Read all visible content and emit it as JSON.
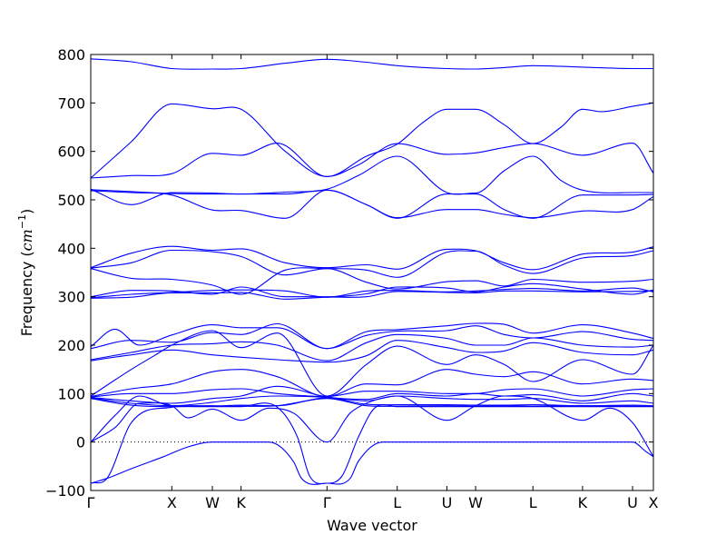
{
  "chart_data": {
    "type": "line",
    "xlabel": "Wave vector",
    "ylabel": "Frequency",
    "ylabel_unit_base": "cm",
    "ylabel_unit_exp": "−1",
    "ylim": [
      -100,
      800
    ],
    "yticks": [
      -100,
      0,
      100,
      200,
      300,
      400,
      500,
      600,
      700,
      800
    ],
    "zero_line": true,
    "x_ticks": [
      {
        "label": "Γ",
        "pos": 0.0
      },
      {
        "label": "X",
        "pos": 1.0
      },
      {
        "label": "W",
        "pos": 1.5
      },
      {
        "label": "K",
        "pos": 1.854
      },
      {
        "label": "Γ",
        "pos": 2.914
      },
      {
        "label": "L",
        "pos": 3.78
      },
      {
        "label": "U",
        "pos": 4.393
      },
      {
        "label": "W",
        "pos": 4.747
      },
      {
        "label": "L",
        "pos": 5.454
      },
      {
        "label": "K",
        "pos": 6.066
      },
      {
        "label": "U",
        "pos": 6.683
      },
      {
        "label": "X",
        "pos": 6.94
      }
    ],
    "xlim": [
      0,
      6.94
    ],
    "series": [
      {
        "x": [
          0,
          0.5,
          1.0,
          1.5,
          1.854,
          2.4,
          2.914,
          3.4,
          3.78,
          4.393,
          4.747,
          5.1,
          5.454,
          6.066,
          6.683,
          6.94
        ],
        "values": [
          791,
          785,
          771,
          770,
          771,
          782,
          790,
          784,
          777,
          771,
          770,
          773,
          777,
          774,
          771,
          771
        ]
      },
      {
        "x": [
          0,
          0.5,
          1.0,
          1.5,
          1.854,
          2.4,
          2.914,
          3.4,
          3.78,
          4.1,
          4.393,
          4.747,
          5.1,
          5.454,
          5.8,
          6.066,
          6.3,
          6.683,
          6.94
        ],
        "values": [
          545,
          620,
          698,
          688,
          687,
          600,
          548,
          590,
          615,
          660,
          687,
          687,
          655,
          616,
          650,
          687,
          682,
          693,
          700
        ]
      },
      {
        "x": [
          0,
          0.5,
          1.0,
          1.5,
          1.854,
          2.3,
          2.914,
          3.3,
          3.78,
          4.393,
          4.747,
          5.1,
          5.454,
          6.066,
          6.683,
          6.94
        ],
        "values": [
          545,
          550,
          554,
          596,
          592,
          617,
          548,
          572,
          616,
          594,
          597,
          608,
          616,
          592,
          617,
          555
        ]
      },
      {
        "x": [
          0,
          0.5,
          1.0,
          1.5,
          1.854,
          2.4,
          2.914,
          3.3,
          3.78,
          4.393,
          4.747,
          5.1,
          5.454,
          5.8,
          6.066,
          6.683,
          6.94
        ],
        "values": [
          522,
          490,
          515,
          514,
          512,
          516,
          522,
          550,
          590,
          515,
          514,
          560,
          590,
          540,
          520,
          515,
          515
        ]
      },
      {
        "x": [
          0,
          0.5,
          1.0,
          1.5,
          1.854,
          2.4,
          2.914,
          3.4,
          3.78,
          4.393,
          4.747,
          5.1,
          5.454,
          6.066,
          6.683,
          6.94
        ],
        "values": [
          521,
          517,
          513,
          512,
          512,
          512,
          520,
          490,
          463,
          480,
          480,
          470,
          463,
          477,
          480,
          507
        ]
      },
      {
        "x": [
          0,
          0.5,
          1.0,
          1.5,
          1.854,
          2.4,
          2.914,
          3.4,
          3.78,
          4.393,
          4.747,
          5.1,
          5.454,
          6.066,
          6.683,
          6.94
        ],
        "values": [
          519,
          515,
          510,
          479,
          478,
          462,
          520,
          490,
          462,
          512,
          512,
          480,
          462,
          510,
          510,
          511
        ]
      },
      {
        "x": [
          0,
          0.5,
          1.0,
          1.5,
          1.854,
          2.4,
          2.914,
          3.4,
          3.78,
          4.393,
          4.747,
          5.1,
          5.454,
          6.066,
          6.683,
          6.94
        ],
        "values": [
          360,
          390,
          404,
          396,
          399,
          370,
          360,
          366,
          357,
          398,
          395,
          370,
          356,
          388,
          392,
          403
        ]
      },
      {
        "x": [
          0,
          0.5,
          1.0,
          1.5,
          1.854,
          2.4,
          2.914,
          3.4,
          3.78,
          4.393,
          4.747,
          5.1,
          5.454,
          6.066,
          6.683,
          6.94
        ],
        "values": [
          359,
          370,
          396,
          393,
          383,
          345,
          358,
          355,
          340,
          392,
          394,
          365,
          348,
          380,
          385,
          395
        ]
      },
      {
        "x": [
          0,
          0.5,
          1.0,
          1.5,
          1.854,
          2.4,
          2.914,
          3.4,
          3.78,
          4.393,
          4.747,
          5.1,
          5.454,
          6.066,
          6.683,
          6.94
        ],
        "values": [
          358,
          338,
          336,
          324,
          305,
          355,
          358,
          330,
          316,
          331,
          333,
          322,
          336,
          330,
          332,
          336
        ]
      },
      {
        "x": [
          0,
          0.5,
          1.0,
          1.5,
          1.854,
          2.4,
          2.914,
          3.4,
          3.78,
          4.393,
          4.747,
          5.1,
          5.454,
          6.066,
          6.683,
          6.94
        ],
        "values": [
          300,
          313,
          312,
          305,
          320,
          300,
          300,
          306,
          320,
          318,
          310,
          320,
          327,
          316,
          305,
          314
        ]
      },
      {
        "x": [
          0,
          0.5,
          1.0,
          1.5,
          1.854,
          2.4,
          2.914,
          3.4,
          3.78,
          4.393,
          4.747,
          5.1,
          5.454,
          6.066,
          6.683,
          6.94
        ],
        "values": [
          298,
          305,
          309,
          313,
          314,
          312,
          299,
          312,
          313,
          310,
          312,
          315,
          317,
          312,
          318,
          310
        ]
      },
      {
        "x": [
          0,
          0.5,
          1.0,
          1.5,
          1.854,
          2.4,
          2.914,
          3.4,
          3.78,
          4.393,
          4.747,
          5.1,
          5.454,
          6.066,
          6.683,
          6.94
        ],
        "values": [
          297,
          299,
          308,
          308,
          309,
          295,
          299,
          300,
          311,
          309,
          308,
          312,
          312,
          310,
          311,
          312
        ]
      },
      {
        "x": [
          0,
          0.3,
          0.6,
          1.0,
          1.5,
          1.854,
          2.3,
          2.914,
          3.4,
          3.78,
          4.393,
          4.747,
          5.1,
          5.454,
          6.066,
          6.683,
          6.94
        ],
        "values": [
          197,
          233,
          200,
          221,
          242,
          236,
          236,
          193,
          228,
          232,
          240,
          245,
          243,
          225,
          242,
          225,
          214
        ]
      },
      {
        "x": [
          0,
          0.5,
          1.0,
          1.5,
          1.854,
          2.3,
          2.914,
          3.4,
          3.78,
          4.393,
          4.747,
          5.1,
          5.454,
          6.066,
          6.683,
          6.94
        ],
        "values": [
          193,
          210,
          206,
          226,
          222,
          244,
          193,
          220,
          229,
          230,
          240,
          222,
          215,
          228,
          212,
          210
        ]
      },
      {
        "x": [
          0,
          0.5,
          1.0,
          1.5,
          1.854,
          2.3,
          2.914,
          3.4,
          3.78,
          4.393,
          4.747,
          5.1,
          5.454,
          6.066,
          6.683,
          6.94
        ],
        "values": [
          170,
          185,
          200,
          203,
          207,
          200,
          168,
          205,
          222,
          214,
          200,
          200,
          215,
          200,
          196,
          200
        ]
      },
      {
        "x": [
          0,
          0.5,
          1.0,
          1.5,
          1.854,
          2.3,
          2.914,
          3.4,
          3.78,
          4.393,
          4.747,
          5.1,
          5.454,
          6.066,
          6.683,
          6.94
        ],
        "values": [
          168,
          180,
          190,
          180,
          175,
          170,
          165,
          178,
          210,
          195,
          185,
          188,
          205,
          185,
          180,
          190
        ]
      },
      {
        "x": [
          0,
          0.5,
          0.8,
          1.0,
          1.5,
          1.854,
          2.3,
          2.914,
          3.4,
          3.78,
          4.393,
          4.747,
          5.1,
          5.454,
          6.066,
          6.683,
          6.94
        ],
        "values": [
          95,
          150,
          180,
          200,
          230,
          195,
          225,
          95,
          160,
          198,
          160,
          180,
          160,
          125,
          170,
          140,
          200
        ]
      },
      {
        "x": [
          0,
          0.5,
          1.0,
          1.5,
          1.854,
          2.3,
          2.914,
          3.4,
          3.78,
          4.393,
          4.747,
          5.1,
          5.454,
          6.066,
          6.683,
          6.94
        ],
        "values": [
          94,
          110,
          120,
          145,
          150,
          135,
          94,
          120,
          118,
          150,
          140,
          135,
          145,
          120,
          130,
          127
        ]
      },
      {
        "x": [
          0,
          0.5,
          1.0,
          1.5,
          1.854,
          2.3,
          2.914,
          3.4,
          3.78,
          4.393,
          4.747,
          5.1,
          5.454,
          6.066,
          6.683,
          6.94
        ],
        "values": [
          93,
          100,
          100,
          108,
          110,
          100,
          94,
          105,
          105,
          100,
          100,
          108,
          110,
          95,
          108,
          110
        ]
      },
      {
        "x": [
          0,
          0.5,
          1.0,
          1.5,
          1.854,
          2.3,
          2.914,
          3.4,
          3.78,
          4.393,
          4.747,
          5.1,
          5.454,
          6.066,
          6.683,
          6.94
        ],
        "values": [
          92,
          85,
          80,
          90,
          95,
          115,
          93,
          88,
          100,
          95,
          100,
          95,
          98,
          85,
          100,
          95
        ]
      },
      {
        "x": [
          0,
          0.5,
          1.0,
          1.5,
          1.854,
          2.3,
          2.914,
          3.4,
          3.78,
          4.393,
          4.747,
          5.1,
          5.454,
          6.066,
          6.683,
          6.94
        ],
        "values": [
          91,
          80,
          75,
          82,
          90,
          95,
          92,
          85,
          95,
          90,
          88,
          88,
          90,
          80,
          85,
          80
        ]
      },
      {
        "x": [
          0,
          0.5,
          1.0,
          1.5,
          1.854,
          2.3,
          2.914,
          3.4,
          3.78,
          4.393,
          4.747,
          5.1,
          5.454,
          6.066,
          6.683,
          6.94
        ],
        "values": [
          90,
          76,
          73,
          74,
          76,
          75,
          91,
          78,
          77,
          77,
          76,
          76,
          77,
          75,
          76,
          75
        ]
      },
      {
        "x": [
          0,
          0.3,
          0.6,
          1.0,
          1.5,
          1.854,
          2.3,
          2.914,
          3.4,
          3.78,
          4.393,
          4.747,
          5.1,
          5.454,
          6.066,
          6.683,
          6.94
        ],
        "values": [
          0,
          55,
          95,
          75,
          75,
          74,
          75,
          90,
          75,
          74,
          75,
          74,
          75,
          74,
          75,
          74,
          74
        ]
      },
      {
        "x": [
          0,
          0.3,
          0.6,
          1.0,
          1.2,
          1.5,
          1.854,
          2.2,
          2.5,
          2.914,
          3.2,
          3.4,
          3.78,
          4.393,
          4.747,
          5.1,
          5.454,
          6.066,
          6.4,
          6.683,
          6.94
        ],
        "values": [
          0,
          30,
          80,
          75,
          50,
          68,
          45,
          70,
          60,
          0,
          60,
          80,
          95,
          45,
          75,
          95,
          90,
          45,
          70,
          40,
          -30
        ]
      },
      {
        "x": [
          0,
          0.2,
          0.5,
          0.9,
          1.2,
          1.5,
          1.854,
          2.2,
          2.5,
          2.6,
          2.914,
          3.2,
          3.3,
          3.6,
          3.78,
          4.393,
          4.747,
          5.1,
          5.454,
          6.066,
          6.683,
          6.85,
          6.94
        ],
        "values": [
          -85,
          -75,
          -55,
          -30,
          -10,
          0,
          0,
          0,
          -40,
          -75,
          -85,
          -75,
          -40,
          0,
          0,
          0,
          0,
          0,
          0,
          0,
          0,
          -20,
          -30
        ]
      },
      {
        "x": [
          0,
          0.2,
          0.5,
          1.0,
          1.3,
          1.854,
          2.3,
          2.55,
          2.7,
          2.914,
          3.1,
          3.3,
          3.5,
          3.78,
          4.393,
          4.747,
          5.1,
          5.454,
          6.066,
          6.683,
          6.94
        ],
        "values": [
          -85,
          -75,
          40,
          72,
          73,
          73,
          72,
          10,
          -70,
          -85,
          -70,
          10,
          70,
          73,
          73,
          73,
          73,
          73,
          73,
          73,
          73
        ]
      }
    ]
  }
}
